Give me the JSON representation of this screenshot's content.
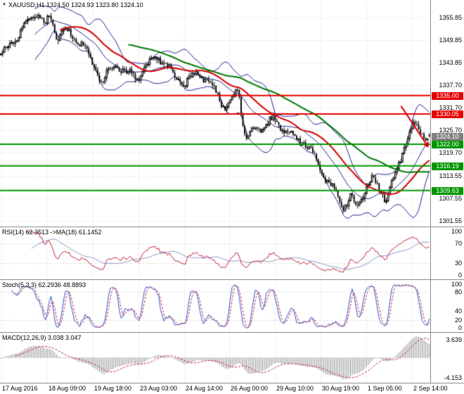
{
  "main_title": "XAUUSD,H1 1324.50 1324.93 1323.80 1324.10",
  "chart_data": {
    "type": "candlestick",
    "symbol": "XAUUSD",
    "timeframe": "H1",
    "ohlc_display": {
      "open": 1324.5,
      "high": 1324.93,
      "low": 1323.8,
      "close": 1324.1
    },
    "x_axis_labels": [
      "17 Aug 2016",
      "18 Aug 09:00",
      "19 Aug 18:00",
      "23 Aug 03:00",
      "24 Aug 14:00",
      "26 Aug 00:00",
      "29 Aug 10:00",
      "30 Aug 19:00",
      "1 Sep 05:00",
      "2 Sep 14:00"
    ],
    "main": {
      "price_top": 1360.5,
      "price_bottom": 1300.0,
      "y_axis_labels": [
        "1355.85",
        "1349.85",
        "1343.85",
        "1337.70",
        "1331.70",
        "1325.70",
        "1319.70",
        "1313.55",
        "1307.55",
        "1301.55"
      ],
      "resistance_levels": [
        {
          "price": 1335.0,
          "label": "1335.00"
        },
        {
          "price": 1330.05,
          "label": "1330.05"
        }
      ],
      "support_levels": [
        {
          "price": 1322.0,
          "label": "1322.00"
        },
        {
          "price": 1316.19,
          "label": "1316.19"
        },
        {
          "price": 1309.63,
          "label": "1309.63"
        }
      ],
      "current_price": {
        "price": 1324.1,
        "label": "1324.10"
      },
      "candles_count": 240,
      "price_path_anchors": [
        [
          0.0,
          1346.5
        ],
        [
          0.02,
          1348.0
        ],
        [
          0.045,
          1352.0
        ],
        [
          0.068,
          1355.0
        ],
        [
          0.088,
          1357.2
        ],
        [
          0.103,
          1353.5
        ],
        [
          0.115,
          1356.0
        ],
        [
          0.13,
          1350.5
        ],
        [
          0.147,
          1352.5
        ],
        [
          0.17,
          1350.5
        ],
        [
          0.195,
          1348.5
        ],
        [
          0.212,
          1344.0
        ],
        [
          0.235,
          1338.5
        ],
        [
          0.252,
          1341.5
        ],
        [
          0.27,
          1343.0
        ],
        [
          0.293,
          1341.0
        ],
        [
          0.318,
          1340.0
        ],
        [
          0.342,
          1343.0
        ],
        [
          0.366,
          1345.5
        ],
        [
          0.391,
          1342.0
        ],
        [
          0.415,
          1339.5
        ],
        [
          0.432,
          1338.0
        ],
        [
          0.457,
          1341.5
        ],
        [
          0.481,
          1339.0
        ],
        [
          0.506,
          1335.5
        ],
        [
          0.522,
          1331.5
        ],
        [
          0.538,
          1334.0
        ],
        [
          0.554,
          1337.0
        ],
        [
          0.562,
          1329.5
        ],
        [
          0.571,
          1323.5
        ],
        [
          0.587,
          1325.0
        ],
        [
          0.611,
          1327.0
        ],
        [
          0.636,
          1328.5
        ],
        [
          0.66,
          1326.0
        ],
        [
          0.685,
          1323.5
        ],
        [
          0.71,
          1322.5
        ],
        [
          0.734,
          1318.0
        ],
        [
          0.75,
          1314.0
        ],
        [
          0.767,
          1311.5
        ],
        [
          0.783,
          1308.5
        ],
        [
          0.799,
          1305.2
        ],
        [
          0.816,
          1308.0
        ],
        [
          0.832,
          1304.8
        ],
        [
          0.849,
          1310.0
        ],
        [
          0.865,
          1313.0
        ],
        [
          0.881,
          1310.5
        ],
        [
          0.898,
          1307.5
        ],
        [
          0.914,
          1312.0
        ],
        [
          0.93,
          1316.5
        ],
        [
          0.947,
          1324.0
        ],
        [
          0.963,
          1327.5
        ],
        [
          0.979,
          1325.0
        ],
        [
          1.0,
          1324.1
        ]
      ],
      "overlays": {
        "bollinger": {
          "period": 20,
          "deviation": 2
        },
        "ma_fast_period": 34,
        "ma_slow_period": 72
      },
      "trend_arrow": {
        "x_from": 0.932,
        "x_to": 0.995,
        "price_from": 1332.2,
        "price_to": 1321.3
      }
    },
    "indicators": {
      "rsi": {
        "title": "RSI(14) 62.3513 ->MA(18) 61.1452",
        "period": 14,
        "value": 62.3513,
        "ma_period": 18,
        "ma_value": 61.1452,
        "levels": [
          70,
          30
        ],
        "y_axis_labels": [
          "100",
          "70",
          "30",
          "0"
        ]
      },
      "stoch": {
        "title": "Stoch(5,3,3) 62.2936 48.8893",
        "k_value": 62.2936,
        "d_value": 48.8893,
        "levels": [
          80,
          20
        ],
        "y_axis_labels": [
          "100",
          "80",
          "40",
          "20",
          "0"
        ]
      },
      "macd": {
        "title": "MACD(12,26,9) 3.038 3.047",
        "macd_value": 3.038,
        "signal_value": 3.047,
        "y_axis_labels": [
          "3.639",
          "-4.153"
        ]
      }
    },
    "colors": {
      "resistance": "#e60000",
      "support": "#009600",
      "current_tag": "#808080",
      "bollinger": "#22228c",
      "ma_fast": "#d40000",
      "ma_slow": "#007800",
      "rsi_line": "#c0203a",
      "rsi_ma": "#8a97c8",
      "stoch_k": "#3050c8",
      "stoch_d": "#c0203a",
      "macd_hist": "#8f8f8f",
      "macd_signal": "#c0203a",
      "grid": "#d8d8d8",
      "candle": "#000000",
      "separator": "#8c8c8c",
      "arrow": "#dd0000"
    }
  }
}
